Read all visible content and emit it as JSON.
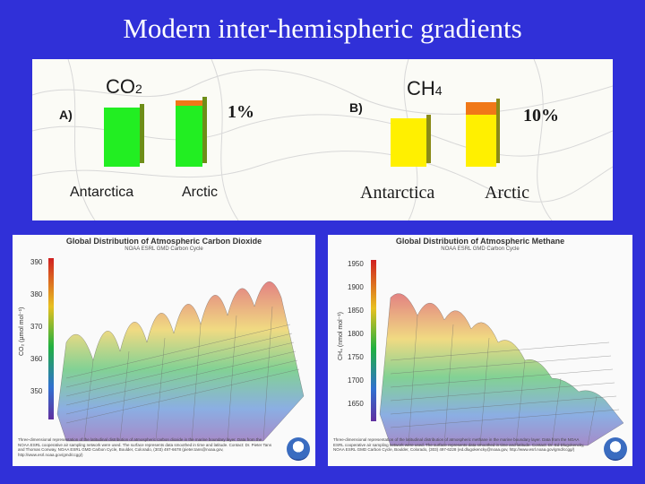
{
  "slide": {
    "title": "Modern inter-hemispheric gradients"
  },
  "panel_a": {
    "label": "A)",
    "gas": "CO",
    "gas_subscript": "2",
    "left_label": "Antarctica",
    "right_label": "Arctic",
    "difference_label": "1%",
    "colors": {
      "bar": "#22ee22",
      "cap": "#f07818",
      "side": "#6e8e18"
    }
  },
  "panel_b": {
    "label": "B)",
    "gas": "CH",
    "gas_subscript": "4",
    "left_label": "Antarctica",
    "right_label": "Arctic",
    "difference_label": "10%",
    "colors": {
      "bar": "#fff000",
      "cap": "#f07818",
      "side": "#8a8a18"
    }
  },
  "chart_co2": {
    "title": "Global Distribution of Atmospheric Carbon Dioxide",
    "subtitle": "NOAA ESRL GMD Carbon Cycle",
    "ylabel": "CO₂ (µmol mol⁻¹)",
    "ticks": [
      "390",
      "380",
      "370",
      "360",
      "350"
    ],
    "caption": "Three-dimensional representation of the latitudinal distribution of atmospheric carbon dioxide in the marine boundary layer. Data from the NOAA ESRL cooperative air sampling network were used. The surface represents data smoothed in time and latitude. Contact: Dr. Pieter Tans and Thomas Conway, NOAA ESRL GMD Carbon Cycle, Boulder, Colorado, (303) 497-6678 (pieter.tans@noaa.gov, http://www.esrl.noaa.gov/gmd/ccgg/)"
  },
  "chart_ch4": {
    "title": "Global Distribution of Atmospheric Methane",
    "subtitle": "NOAA ESRL GMD Carbon Cycle",
    "ylabel": "CH₄ (nmol mol⁻¹)",
    "ticks": [
      "1950",
      "1900",
      "1850",
      "1800",
      "1750",
      "1700",
      "1650"
    ],
    "caption": "Three-dimensional representation of the latitudinal distribution of atmospheric methane in the marine boundary layer. Data from the NOAA ESRL cooperative air sampling network were used. The surface represents data smoothed in time and latitude. Contact: Dr. Ed Dlugokencky, NOAA ESRL GMD Carbon Cycle, Boulder, Colorado, (303) 497-6228 (ed.dlugokencky@noaa.gov, http://www.esrl.noaa.gov/gmd/ccgg/)"
  }
}
